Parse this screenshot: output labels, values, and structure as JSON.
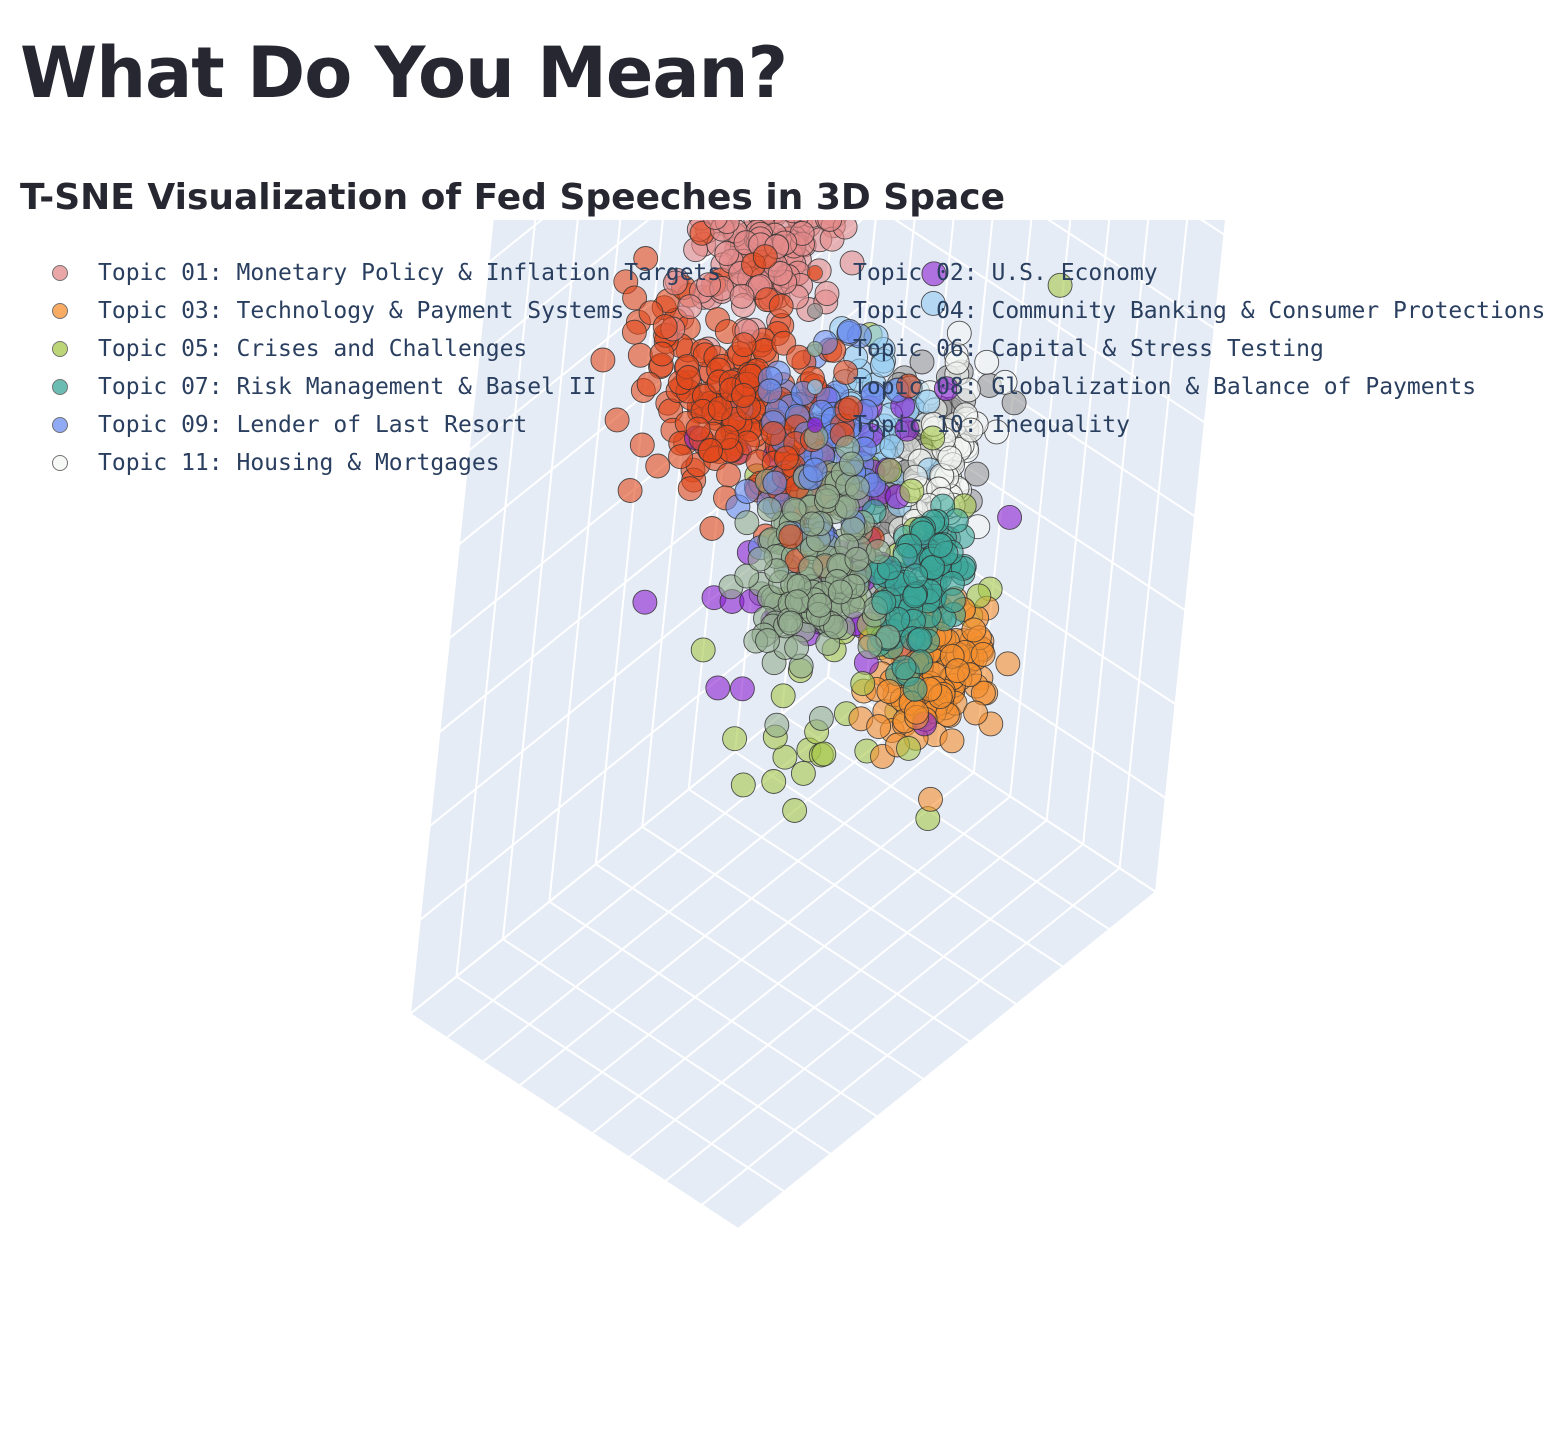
{
  "page": {
    "title": "What Do You Mean?",
    "subtitle": "T-SNE Visualization of Fed Speeches in 3D Space"
  },
  "colors": {
    "scene_background": "#e5ecf6",
    "grid": "#ffffff",
    "legend_text": "#2a3f5f"
  },
  "chart_data": {
    "type": "scatter3d",
    "title": "",
    "axes": {
      "x": "",
      "y": "",
      "z": "",
      "grid": true
    },
    "legend_placement": "top-left, two columns",
    "marker": {
      "opacity": 0.6,
      "outline": "#333333"
    },
    "series": [
      {
        "name": "Topic 01: Monetary Policy & Inflation Targets",
        "color": "#e48a8a",
        "count": 190,
        "center": [
          0.05,
          0.55,
          0.55
        ],
        "spread": [
          0.17,
          0.13,
          0.1
        ]
      },
      {
        "name": "Topic 02: U.S. Economy",
        "color": "#e24a1c",
        "count": 230,
        "center": [
          -0.25,
          0.3,
          0.3
        ],
        "spread": [
          0.09,
          0.3,
          0.12
        ]
      },
      {
        "name": "Topic 03: Technology & Payment Systems",
        "color": "#f5902f",
        "count": 120,
        "center": [
          0.2,
          -0.5,
          -0.3
        ],
        "spread": [
          0.12,
          0.1,
          0.08
        ]
      },
      {
        "name": "Topic 04: Community Banking & Consumer Protections",
        "color": "#9a9a9a",
        "count": 110,
        "center": [
          0.55,
          0.12,
          -0.15
        ],
        "spread": [
          0.1,
          0.1,
          0.12
        ]
      },
      {
        "name": "Topic 05: Crises and Challenges",
        "color": "#a6c84a",
        "count": 60,
        "center": [
          0.1,
          -0.1,
          -0.2
        ],
        "spread": [
          0.25,
          0.25,
          0.2
        ]
      },
      {
        "name": "Topic 06: Capital & Stress Testing",
        "color": "#93ae90",
        "count": 160,
        "center": [
          -0.35,
          -0.35,
          0.15
        ],
        "spread": [
          0.12,
          0.13,
          0.12
        ]
      },
      {
        "name": "Topic 07: Risk Management & Basel II",
        "color": "#3aa79a",
        "count": 100,
        "center": [
          0.0,
          -0.55,
          0.0
        ],
        "spread": [
          0.1,
          0.09,
          0.08
        ]
      },
      {
        "name": "Topic 08: Globalization & Balance of Payments",
        "color": "#92ccf2",
        "count": 60,
        "center": [
          0.3,
          0.15,
          0.1
        ],
        "spread": [
          0.12,
          0.14,
          0.12
        ]
      },
      {
        "name": "Topic 09: Lender of Last Resort",
        "color": "#6b8ef0",
        "count": 80,
        "center": [
          -0.2,
          -0.12,
          0.3
        ],
        "spread": [
          0.12,
          0.15,
          0.1
        ]
      },
      {
        "name": "Topic 10: Inequality",
        "color": "#8b1fd0",
        "count": 60,
        "center": [
          0.05,
          -0.05,
          0.0
        ],
        "spread": [
          0.22,
          0.2,
          0.18
        ]
      },
      {
        "name": "Topic 11: Housing & Mortgages",
        "color": "#f4f7f3",
        "count": 90,
        "center": [
          0.45,
          -0.12,
          -0.05
        ],
        "spread": [
          0.1,
          0.08,
          0.12
        ]
      }
    ]
  }
}
